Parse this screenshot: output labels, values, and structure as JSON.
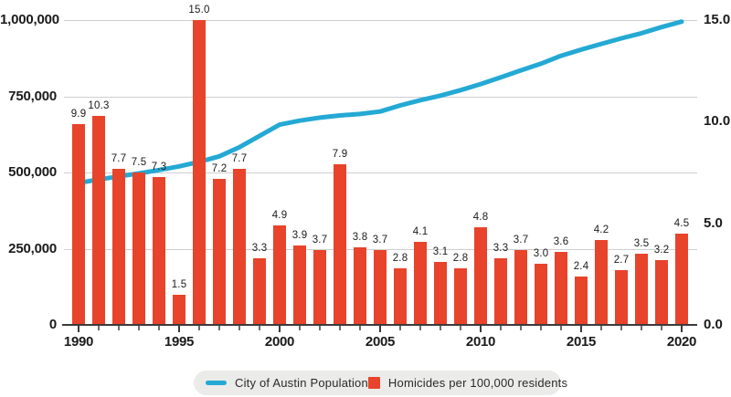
{
  "chart_data": {
    "type": "bar",
    "title": "",
    "xlabel": "",
    "ylabel_left": "",
    "ylabel_right": "",
    "x": [
      1990,
      1991,
      1992,
      1993,
      1994,
      1995,
      1996,
      1997,
      1998,
      1999,
      2000,
      2001,
      2002,
      2003,
      2004,
      2005,
      2006,
      2007,
      2008,
      2009,
      2010,
      2011,
      2012,
      2013,
      2014,
      2015,
      2016,
      2017,
      2018,
      2019,
      2020
    ],
    "series": [
      {
        "name": "Homicides per 100,000 residents",
        "type": "bar",
        "axis": "right",
        "color": "#E8432B",
        "values": [
          9.9,
          10.3,
          7.7,
          7.5,
          7.3,
          1.5,
          15.0,
          7.2,
          7.7,
          3.3,
          4.9,
          3.9,
          3.7,
          7.9,
          3.8,
          3.7,
          2.8,
          4.1,
          3.1,
          2.8,
          4.8,
          3.3,
          3.7,
          3.0,
          3.6,
          2.4,
          4.2,
          2.7,
          3.5,
          3.2,
          4.5
        ],
        "data_labels_visible": true
      },
      {
        "name": "City of Austin Population",
        "type": "line",
        "axis": "left",
        "color": "#24A9D4",
        "values": [
          466000,
          477000,
          487000,
          497000,
          508000,
          520000,
          535000,
          553000,
          583000,
          620000,
          657000,
          670000,
          680000,
          687000,
          692000,
          700000,
          720000,
          737000,
          752000,
          770000,
          790000,
          812000,
          835000,
          857000,
          883000,
          903000,
          922000,
          940000,
          957000,
          977000,
          995000
        ],
        "data_labels_visible": false
      }
    ],
    "left_axis": {
      "range": [
        0,
        1000000
      ],
      "tick_values": [
        0,
        250000,
        500000,
        750000,
        1000000
      ],
      "tick_labels": [
        "0",
        "250,000",
        "500,000",
        "750,000",
        "1,000,000"
      ]
    },
    "right_axis": {
      "range": [
        0,
        15
      ],
      "tick_values": [
        0,
        5,
        10,
        15
      ],
      "tick_labels": [
        "0.0",
        "5.0",
        "10.0",
        "15.0"
      ]
    },
    "x_axis": {
      "labeled_ticks": [
        1990,
        1995,
        2000,
        2005,
        2010,
        2015,
        2020
      ]
    },
    "grid": true,
    "legend_position": "bottom"
  },
  "legend": {
    "population_label": "City of Austin Population",
    "homicides_label": "Homicides per 100,000 residents"
  },
  "colors": {
    "bar": "#E8432B",
    "line": "#24A9D4",
    "grid": "#CFCFCF",
    "axis": "#3B3B3B",
    "text": "#1A1A1A",
    "legend_bg": "#EBEBE9"
  }
}
